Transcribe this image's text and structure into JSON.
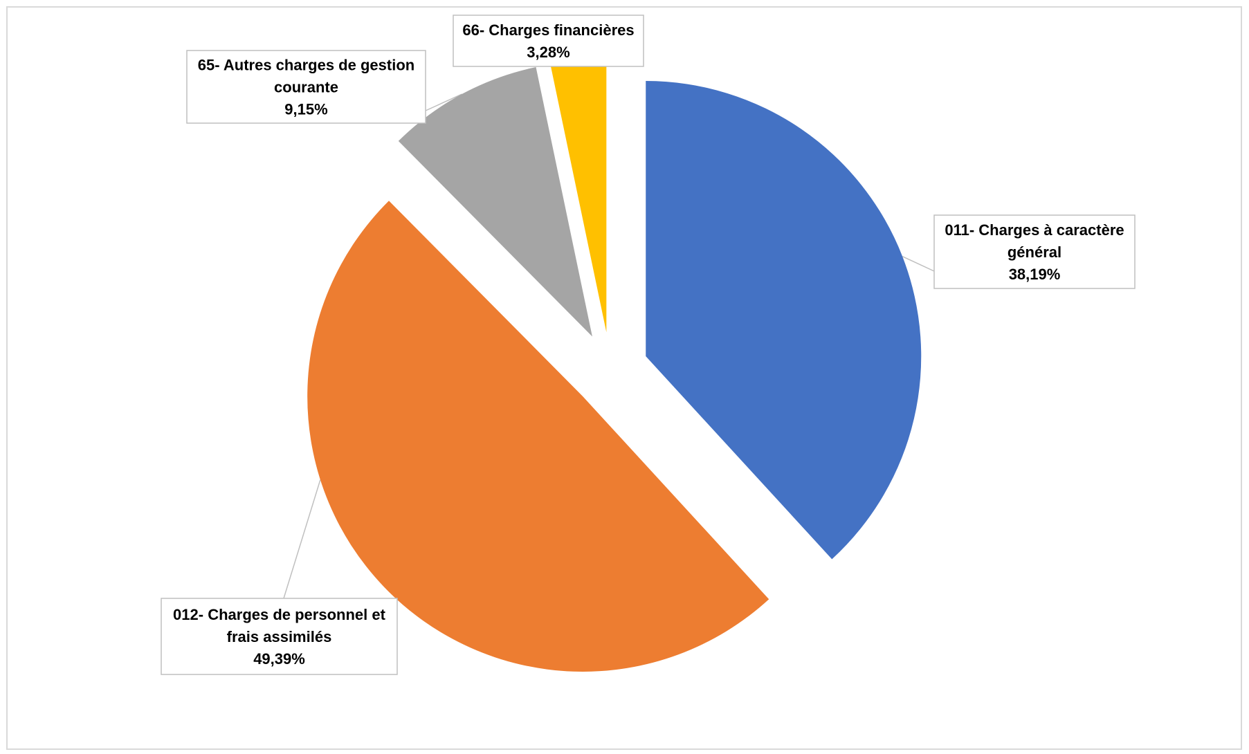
{
  "chart_data": {
    "type": "pie",
    "series": [
      {
        "values": [
          {
            "label_lines": [
              "011- Charges à caractère",
              "général"
            ],
            "value": 38.19,
            "value_text": "38,19%",
            "color": "#4472C4"
          },
          {
            "label_lines": [
              "012- Charges de personnel et",
              "frais assimilés"
            ],
            "value": 49.39,
            "value_text": "49,39%",
            "color": "#ED7D31"
          },
          {
            "label_lines": [
              "65- Autres charges de gestion",
              "courante"
            ],
            "value": 9.15,
            "value_text": "9,15%",
            "color": "#A5A5A5"
          },
          {
            "label_lines": [
              "66- Charges financières"
            ],
            "value": 3.28,
            "value_text": "3,28%",
            "color": "#FFC000"
          }
        ]
      }
    ],
    "exploded": true,
    "legend": "none",
    "data_label_style": "callout"
  }
}
